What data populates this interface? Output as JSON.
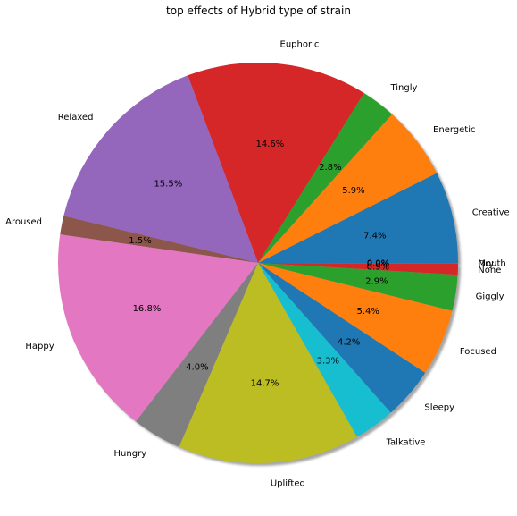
{
  "chart_data": {
    "type": "pie",
    "title": "top effects of Hybrid type of strain",
    "start_angle_deg": 0,
    "direction": "counterclockwise",
    "shadow": true,
    "slices": [
      {
        "label": "Creative",
        "value": 7.4,
        "pct_label": "7.4%",
        "color": "#1f77b4"
      },
      {
        "label": "Energetic",
        "value": 5.9,
        "pct_label": "5.9%",
        "color": "#ff7f0e"
      },
      {
        "label": "Tingly",
        "value": 2.8,
        "pct_label": "2.8%",
        "color": "#2ca02c"
      },
      {
        "label": "Euphoric",
        "value": 14.6,
        "pct_label": "14.6%",
        "color": "#d62728"
      },
      {
        "label": "Relaxed",
        "value": 15.5,
        "pct_label": "15.5%",
        "color": "#9467bd"
      },
      {
        "label": "Aroused",
        "value": 1.5,
        "pct_label": "1.5%",
        "color": "#8c564b"
      },
      {
        "label": "Happy",
        "value": 16.8,
        "pct_label": "16.8%",
        "color": "#e377c2"
      },
      {
        "label": "Hungry",
        "value": 4.0,
        "pct_label": "4.0%",
        "color": "#7f7f7f"
      },
      {
        "label": "Uplifted",
        "value": 14.7,
        "pct_label": "14.7%",
        "color": "#bcbd22"
      },
      {
        "label": "Talkative",
        "value": 3.3,
        "pct_label": "3.3%",
        "color": "#17becf"
      },
      {
        "label": "Sleepy",
        "value": 4.2,
        "pct_label": "4.2%",
        "color": "#1f77b4"
      },
      {
        "label": "Focused",
        "value": 5.4,
        "pct_label": "5.4%",
        "color": "#ff7f0e"
      },
      {
        "label": "Giggly",
        "value": 2.9,
        "pct_label": "2.9%",
        "color": "#2ca02c"
      },
      {
        "label": "None",
        "value": 0.9,
        "pct_label": "0.9%",
        "color": "#d62728"
      },
      {
        "label": "Dry",
        "value": 0.02,
        "pct_label": "0.0%",
        "color": "#9467bd"
      },
      {
        "label": "Mouth",
        "value": 0.02,
        "pct_label": "0.0%",
        "color": "#8c564b"
      }
    ]
  }
}
